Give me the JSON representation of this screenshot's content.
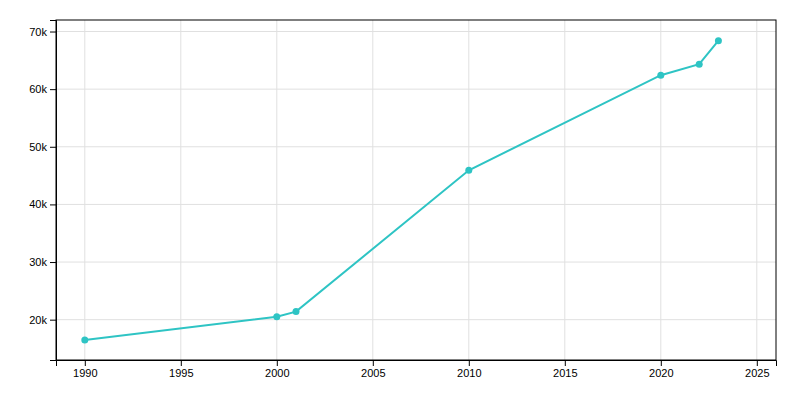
{
  "chart_data": {
    "type": "line",
    "x": [
      1990,
      2000,
      2001,
      2010,
      2020,
      2022,
      2023
    ],
    "values": [
      16466,
      20507,
      21400,
      45913,
      62418,
      64339,
      68408
    ],
    "color": "#2EC4C4",
    "marker": "circle",
    "xlim": [
      1988.5,
      2026
    ],
    "ylim": [
      13000,
      72000
    ],
    "xticks": [
      1990,
      1995,
      2000,
      2005,
      2010,
      2015,
      2020,
      2025
    ],
    "yticks": [
      {
        "value": 20000,
        "label": "20k"
      },
      {
        "value": 30000,
        "label": "30k"
      },
      {
        "value": 40000,
        "label": "40k"
      },
      {
        "value": 50000,
        "label": "50k"
      },
      {
        "value": 60000,
        "label": "60k"
      },
      {
        "value": 70000,
        "label": "70k"
      }
    ],
    "grid": true
  }
}
